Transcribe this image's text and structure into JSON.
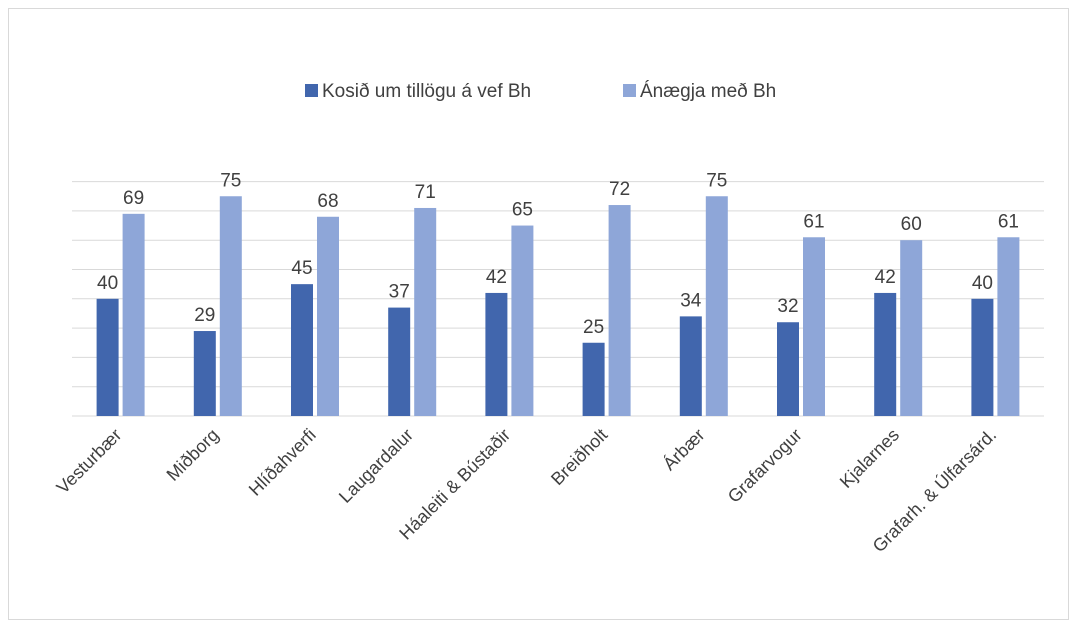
{
  "chart_data": {
    "type": "bar",
    "title": "",
    "xlabel": "",
    "ylabel": "",
    "ylim": [
      0,
      80
    ],
    "grid": true,
    "legend_position": "top",
    "categories": [
      "Vesturbær",
      "Miðborg",
      "Hlíðahverfi",
      "Laugardalur",
      "Háaleiti & Bústaðir",
      "Breiðholt",
      "Árbær",
      "Grafarvogur",
      "Kjalarnes",
      "Grafarh. & Úlfarsárd."
    ],
    "series": [
      {
        "name": "Kosið um tillögu á vef Bh",
        "color": "#4166ad",
        "values": [
          40,
          29,
          45,
          37,
          42,
          25,
          34,
          32,
          42,
          40
        ]
      },
      {
        "name": "Ánægja með Bh",
        "color": "#8ea6d8",
        "values": [
          69,
          75,
          68,
          71,
          65,
          72,
          75,
          61,
          60,
          61
        ]
      }
    ]
  }
}
